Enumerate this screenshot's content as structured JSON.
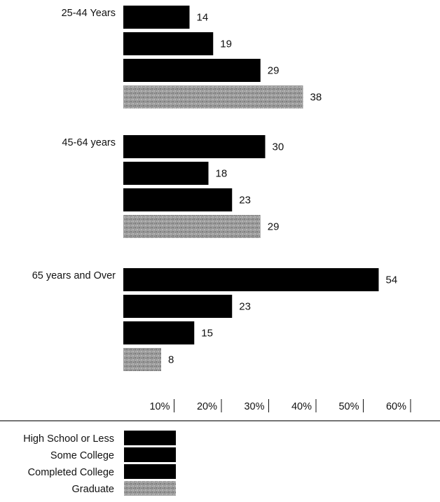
{
  "chart_data": {
    "type": "bar",
    "orientation": "horizontal",
    "groups": [
      "25-44 Years",
      "45-64 years",
      "65 years and Over"
    ],
    "series": [
      {
        "name": "High School or Less",
        "values": [
          14,
          30,
          54
        ],
        "color": "#000000"
      },
      {
        "name": "Some College",
        "values": [
          19,
          18,
          23
        ],
        "color": "#000000"
      },
      {
        "name": "Completed College",
        "values": [
          29,
          23,
          15
        ],
        "color": "#000000"
      },
      {
        "name": "Graduate",
        "values": [
          38,
          29,
          8
        ],
        "color": "#9a9a9a"
      }
    ],
    "x_ticks": [
      "10%",
      "20%",
      "30%",
      "40%",
      "50%",
      "60%"
    ],
    "xlim": [
      0,
      60
    ],
    "title": "",
    "xlabel": "",
    "ylabel": "",
    "legend_position": "bottom-left",
    "grid": false
  }
}
